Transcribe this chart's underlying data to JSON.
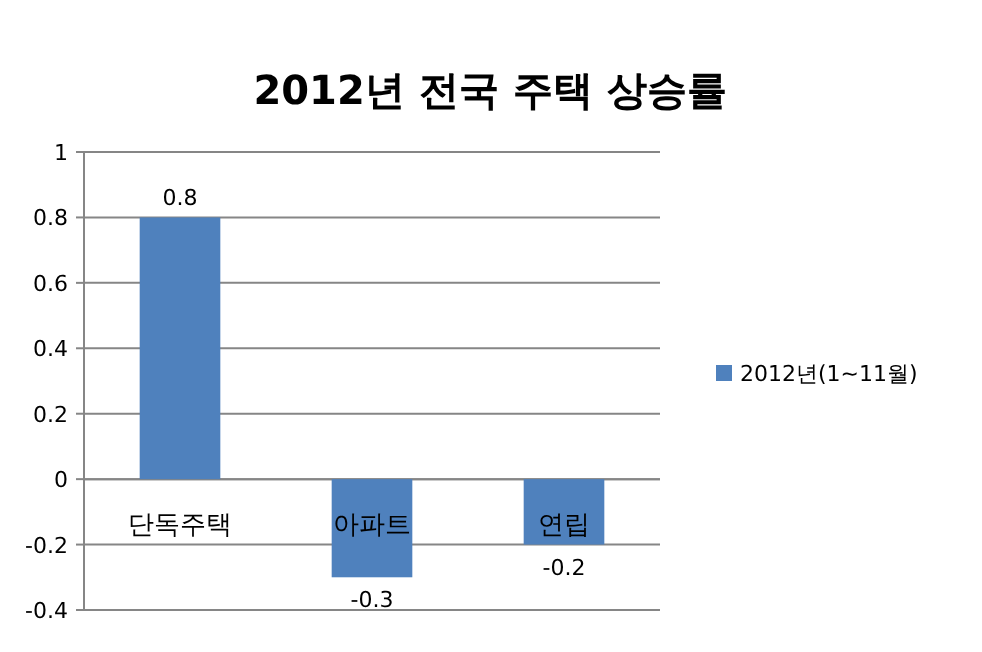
{
  "chart_data": {
    "type": "bar",
    "title": "2012년 전국 주택 상승률",
    "categories": [
      "단독주택",
      "아파트",
      "연립"
    ],
    "series": [
      {
        "name": "2012년(1~11월)",
        "color": "#4f81bd",
        "values": [
          0.8,
          -0.3,
          -0.2
        ]
      }
    ],
    "ylim": [
      -0.4,
      1
    ],
    "yticks": [
      -0.4,
      -0.2,
      0,
      0.2,
      0.4,
      0.6,
      0.8,
      1
    ],
    "grid": "y",
    "legend": "right",
    "data_labels": true
  }
}
